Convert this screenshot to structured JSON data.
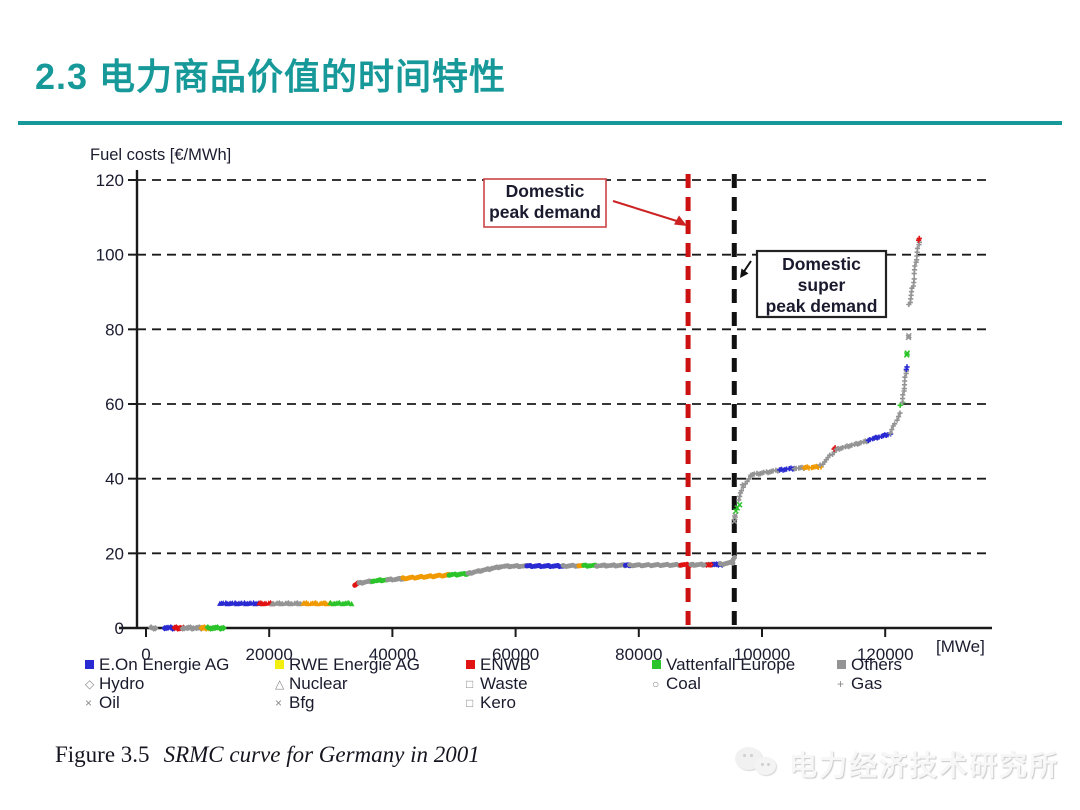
{
  "slide": {
    "title": "2.3 电力商品价值的时间特性",
    "accent_color": "#17999a",
    "caption_prefix": "Figure 3.5",
    "caption_italic": "SRMC curve for Germany in 2001",
    "watermark_text": "电力经济技术研究所"
  },
  "chart_data": {
    "type": "scatter",
    "title": "SRMC curve for Germany in 2001",
    "ylabel": "Fuel costs [€/MWh]",
    "x_unit": "[MWe]",
    "xlim": [
      0,
      128000
    ],
    "ylim": [
      0,
      120
    ],
    "x_ticks": [
      0,
      20000,
      40000,
      60000,
      80000,
      100000,
      120000
    ],
    "y_ticks": [
      0,
      20,
      40,
      60,
      80,
      100,
      120
    ],
    "grid": "horizontal-dashed",
    "legend_position": "bottom",
    "annotations": [
      {
        "label_lines": [
          "Domestic",
          "peak demand"
        ],
        "x": 88000,
        "line_color": "#cc1111",
        "box_color": "#cc4444"
      },
      {
        "label_lines": [
          "Domestic",
          "super",
          "peak demand"
        ],
        "x": 95500,
        "line_color": "#111111",
        "box_color": "#222222"
      }
    ],
    "owners": [
      {
        "name": "E.On Energie AG",
        "color": "#2a2ad2"
      },
      {
        "name": "RWE Energie AG",
        "color": "#f2ee10",
        "curve_color": "#f09a00"
      },
      {
        "name": "ENWB",
        "color": "#e01212"
      },
      {
        "name": "Vattenfall Europe",
        "color": "#2bc42b"
      },
      {
        "name": "Others",
        "color": "#949494"
      }
    ],
    "fuels": [
      {
        "name": "Hydro",
        "marker": "diamond"
      },
      {
        "name": "Nuclear",
        "marker": "triangle"
      },
      {
        "name": "Coal",
        "marker": "circle"
      },
      {
        "name": "Gas",
        "marker": "plus"
      },
      {
        "name": "Oil",
        "marker": "x"
      },
      {
        "name": "Waste",
        "marker": "square"
      },
      {
        "name": "Kero",
        "marker": "square"
      },
      {
        "name": "Bfg",
        "marker": "x"
      }
    ],
    "segments": [
      [
        900,
        1500,
        0,
        0,
        4,
        0
      ],
      [
        3000,
        4600,
        0,
        0,
        0,
        0
      ],
      [
        4600,
        6000,
        0,
        0,
        2,
        0
      ],
      [
        6000,
        9000,
        0,
        0,
        4,
        0
      ],
      [
        9000,
        10100,
        0,
        0,
        1,
        0
      ],
      [
        10100,
        12600,
        0,
        0,
        3,
        0
      ],
      [
        12000,
        18300,
        6.6,
        6.6,
        0,
        1
      ],
      [
        18300,
        20500,
        6.6,
        6.6,
        2,
        1
      ],
      [
        20500,
        25500,
        6.6,
        6.6,
        4,
        1
      ],
      [
        25500,
        30000,
        6.6,
        6.6,
        1,
        1
      ],
      [
        30000,
        33300,
        6.6,
        6.6,
        3,
        1
      ],
      [
        33900,
        34500,
        11.5,
        12,
        2,
        2
      ],
      [
        34500,
        36800,
        12,
        12.6,
        4,
        2
      ],
      [
        36800,
        39200,
        12.6,
        12.9,
        3,
        2
      ],
      [
        39200,
        41800,
        12.9,
        13.2,
        4,
        2
      ],
      [
        41800,
        49200,
        13.3,
        14.2,
        1,
        2
      ],
      [
        49200,
        52200,
        14.2,
        14.5,
        3,
        2
      ],
      [
        52200,
        57500,
        14.6,
        16.4,
        4,
        2
      ],
      [
        57500,
        61800,
        16.5,
        16.6,
        4,
        2
      ],
      [
        61800,
        67800,
        16.6,
        16.6,
        0,
        2
      ],
      [
        67800,
        70300,
        16.6,
        16.7,
        4,
        2
      ],
      [
        70300,
        71000,
        16.7,
        16.7,
        1,
        2
      ],
      [
        71000,
        73200,
        16.7,
        16.7,
        3,
        2
      ],
      [
        73200,
        77800,
        16.7,
        16.8,
        4,
        2
      ],
      [
        77800,
        78600,
        16.8,
        16.8,
        0,
        2
      ],
      [
        78600,
        86800,
        16.8,
        16.9,
        4,
        2
      ],
      [
        86800,
        88400,
        16.9,
        16.9,
        2,
        2
      ],
      [
        88400,
        91300,
        16.9,
        17,
        4,
        2
      ],
      [
        91300,
        92300,
        17,
        17,
        2,
        4
      ],
      [
        92300,
        93300,
        17,
        17,
        0,
        4
      ],
      [
        93300,
        95200,
        17.1,
        17.5,
        4,
        2
      ],
      [
        95100,
        95600,
        17.8,
        18.8,
        4,
        2
      ],
      [
        95450,
        95650,
        28.5,
        30.3,
        4,
        4
      ],
      [
        95800,
        96300,
        31.5,
        33,
        3,
        4
      ],
      [
        96200,
        96900,
        34.3,
        37.8,
        4,
        3
      ],
      [
        96900,
        98200,
        38.2,
        40.5,
        4,
        3
      ],
      [
        98200,
        102800,
        41,
        42.3,
        4,
        3
      ],
      [
        102800,
        105300,
        42.3,
        42.8,
        0,
        3
      ],
      [
        105300,
        106800,
        42.8,
        42.9,
        4,
        3
      ],
      [
        106800,
        109500,
        42.9,
        43.2,
        1,
        3
      ],
      [
        109500,
        112000,
        43.5,
        47.7,
        4,
        3
      ],
      [
        111700,
        111900,
        48,
        48.3,
        2,
        3
      ],
      [
        112000,
        117300,
        47.8,
        50.2,
        4,
        3
      ],
      [
        117300,
        120800,
        50.4,
        52,
        0,
        3
      ],
      [
        120800,
        122400,
        52.2,
        57.5,
        4,
        3
      ],
      [
        122500,
        122800,
        59.5,
        60.5,
        3,
        3
      ],
      [
        122800,
        123400,
        60.5,
        69,
        4,
        3
      ],
      [
        123350,
        123500,
        69.2,
        69.8,
        0,
        3
      ],
      [
        123550,
        123650,
        73.3,
        73.7,
        3,
        4
      ],
      [
        123750,
        123850,
        77.8,
        78.2,
        4,
        4
      ],
      [
        123900,
        124700,
        86.5,
        93.5,
        4,
        3
      ],
      [
        124700,
        125500,
        95,
        103.5,
        4,
        3
      ],
      [
        125350,
        125500,
        103.8,
        104.2,
        2,
        3
      ]
    ]
  },
  "legend": {
    "columns": [
      {
        "owner": {
          "label": "E.On Energie AG",
          "color": "#2a2ad2"
        },
        "fuels": [
          {
            "label": "Hydro",
            "glyph": "◇"
          },
          {
            "label": "Oil",
            "glyph": "×"
          }
        ]
      },
      {
        "owner": {
          "label": "RWE Energie AG",
          "color": "#f2ee10"
        },
        "fuels": [
          {
            "label": "Nuclear",
            "glyph": "△"
          },
          {
            "label": "Bfg",
            "glyph": "×"
          }
        ]
      },
      {
        "owner": {
          "label": "ENWB",
          "color": "#e01212"
        },
        "fuels": [
          {
            "label": "Waste",
            "glyph": "□"
          },
          {
            "label": "Kero",
            "glyph": "□"
          }
        ]
      },
      {
        "owner": {
          "label": "Vattenfall Europe",
          "color": "#2bc42b"
        },
        "fuels": [
          {
            "label": "Coal",
            "glyph": "○"
          }
        ]
      },
      {
        "owner": {
          "label": "Others",
          "color": "#949494"
        },
        "fuels": [
          {
            "label": "Gas",
            "glyph": "+"
          }
        ]
      }
    ],
    "column_lefts": [
      85,
      275,
      466,
      652,
      837
    ]
  }
}
